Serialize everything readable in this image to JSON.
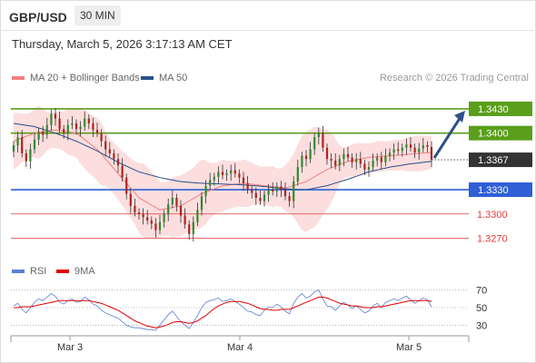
{
  "header": {
    "pair": "GBP/USD",
    "timeframe": "30 MIN",
    "timestamp": "Thursday, March 5, 2026 3:17:13 AM CET"
  },
  "legend": {
    "ma20": {
      "label": "MA 20 + Bollinger Bands",
      "color": "#f08080"
    },
    "ma50": {
      "label": "MA 50",
      "color": "#2b4f8a"
    },
    "credit": "Research © 2026 Trading Central"
  },
  "rsi_legend": {
    "rsi": {
      "label": "RSI",
      "color": "#5b7fd6"
    },
    "ma9": {
      "label": "9MA",
      "color": "#e00000"
    }
  },
  "chart_data": [
    {
      "type": "candlestick",
      "ylim": [
        1.3247,
        1.3458
      ],
      "x_ticks": [
        "Mar 3",
        "Mar 4",
        "Mar 5"
      ],
      "current_price": {
        "value": 1.3367,
        "label": "1.3367"
      },
      "levels": [
        {
          "value": 1.343,
          "label": "1.3430",
          "kind": "resistance",
          "color": "#5a9e1a"
        },
        {
          "value": 1.34,
          "label": "1.3400",
          "kind": "resistance",
          "color": "#5a9e1a"
        },
        {
          "value": 1.333,
          "label": "1.3330",
          "kind": "pivot",
          "color": "#2e5fd6"
        },
        {
          "value": 1.33,
          "label": "1.3300",
          "kind": "support",
          "color": "#e03a3a"
        },
        {
          "value": 1.327,
          "label": "1.3270",
          "kind": "support",
          "color": "#e03a3a"
        }
      ],
      "closes": [
        1.3385,
        1.3395,
        1.3375,
        1.3365,
        1.338,
        1.3392,
        1.3402,
        1.3398,
        1.341,
        1.3424,
        1.3418,
        1.3405,
        1.34,
        1.341,
        1.3412,
        1.3405,
        1.3408,
        1.3418,
        1.3412,
        1.3404,
        1.34,
        1.339,
        1.338,
        1.3375,
        1.3368,
        1.336,
        1.3345,
        1.3325,
        1.331,
        1.3302,
        1.33,
        1.3296,
        1.3292,
        1.3288,
        1.328,
        1.329,
        1.33,
        1.3312,
        1.332,
        1.331,
        1.3298,
        1.3287,
        1.3275,
        1.329,
        1.3305,
        1.3322,
        1.3335,
        1.3342,
        1.3346,
        1.3352,
        1.3348,
        1.335,
        1.3354,
        1.335,
        1.3345,
        1.3338,
        1.333,
        1.3326,
        1.332,
        1.3316,
        1.3324,
        1.333,
        1.3328,
        1.3334,
        1.333,
        1.3322,
        1.3316,
        1.334,
        1.3358,
        1.3372,
        1.3368,
        1.338,
        1.3395,
        1.34,
        1.3382,
        1.3368,
        1.3366,
        1.336,
        1.3368,
        1.3374,
        1.337,
        1.3364,
        1.3368,
        1.3362,
        1.3355,
        1.3358,
        1.3366,
        1.337,
        1.3364,
        1.3372,
        1.3376,
        1.338,
        1.3378,
        1.3382,
        1.3386,
        1.3382,
        1.3376,
        1.3381,
        1.3385,
        1.3383,
        1.3367
      ],
      "ma20_sample": [
        1.339,
        1.34,
        1.3404,
        1.34,
        1.338,
        1.335,
        1.332,
        1.3305,
        1.331,
        1.3325,
        1.3335,
        1.3338,
        1.3335,
        1.3332,
        1.334,
        1.3355,
        1.3365,
        1.337,
        1.3372,
        1.3374,
        1.3376
      ],
      "ma50_sample": [
        1.3412,
        1.3408,
        1.34,
        1.339,
        1.3378,
        1.3364,
        1.3352,
        1.3345,
        1.334,
        1.3338,
        1.3337,
        1.3336,
        1.3334,
        1.3331,
        1.333,
        1.3335,
        1.3343,
        1.3352,
        1.3358,
        1.3362,
        1.3365
      ],
      "forecast_target": 1.343
    },
    {
      "type": "line",
      "name": "RSI",
      "ylim": [
        20,
        80
      ],
      "y_ticks": [
        "70",
        "50",
        "30"
      ],
      "rsi": [
        52,
        55,
        48,
        44,
        50,
        56,
        60,
        58,
        62,
        66,
        63,
        56,
        54,
        58,
        60,
        56,
        57,
        62,
        59,
        54,
        52,
        47,
        44,
        42,
        40,
        38,
        34,
        30,
        28,
        27,
        27,
        26,
        25,
        25,
        24,
        30,
        36,
        42,
        46,
        40,
        34,
        30,
        26,
        33,
        41,
        50,
        56,
        58,
        59,
        61,
        57,
        58,
        60,
        57,
        54,
        50,
        46,
        45,
        42,
        41,
        47,
        51,
        50,
        54,
        51,
        46,
        43,
        55,
        62,
        66,
        61,
        63,
        68,
        70,
        60,
        52,
        51,
        47,
        52,
        56,
        53,
        49,
        52,
        48,
        44,
        46,
        52,
        55,
        50,
        56,
        58,
        60,
        58,
        61,
        63,
        59,
        55,
        58,
        61,
        59,
        51
      ],
      "ma9": [
        50,
        50,
        51,
        51,
        51,
        52,
        53,
        54,
        55,
        56,
        57,
        58,
        58,
        58,
        58,
        58,
        58,
        58,
        58,
        57,
        56,
        55,
        53,
        51,
        49,
        47,
        44,
        41,
        38,
        35,
        33,
        31,
        29,
        28,
        27,
        28,
        29,
        31,
        33,
        34,
        34,
        33,
        32,
        33,
        35,
        38,
        41,
        45,
        49,
        52,
        54,
        56,
        57,
        57,
        57,
        56,
        55,
        53,
        51,
        49,
        48,
        48,
        47,
        47,
        48,
        48,
        48,
        50,
        52,
        54,
        56,
        58,
        60,
        62,
        62,
        61,
        59,
        57,
        55,
        54,
        53,
        52,
        52,
        51,
        50,
        50,
        50,
        51,
        51,
        52,
        53,
        54,
        55,
        56,
        57,
        58,
        58,
        58,
        58,
        58,
        57
      ]
    }
  ]
}
